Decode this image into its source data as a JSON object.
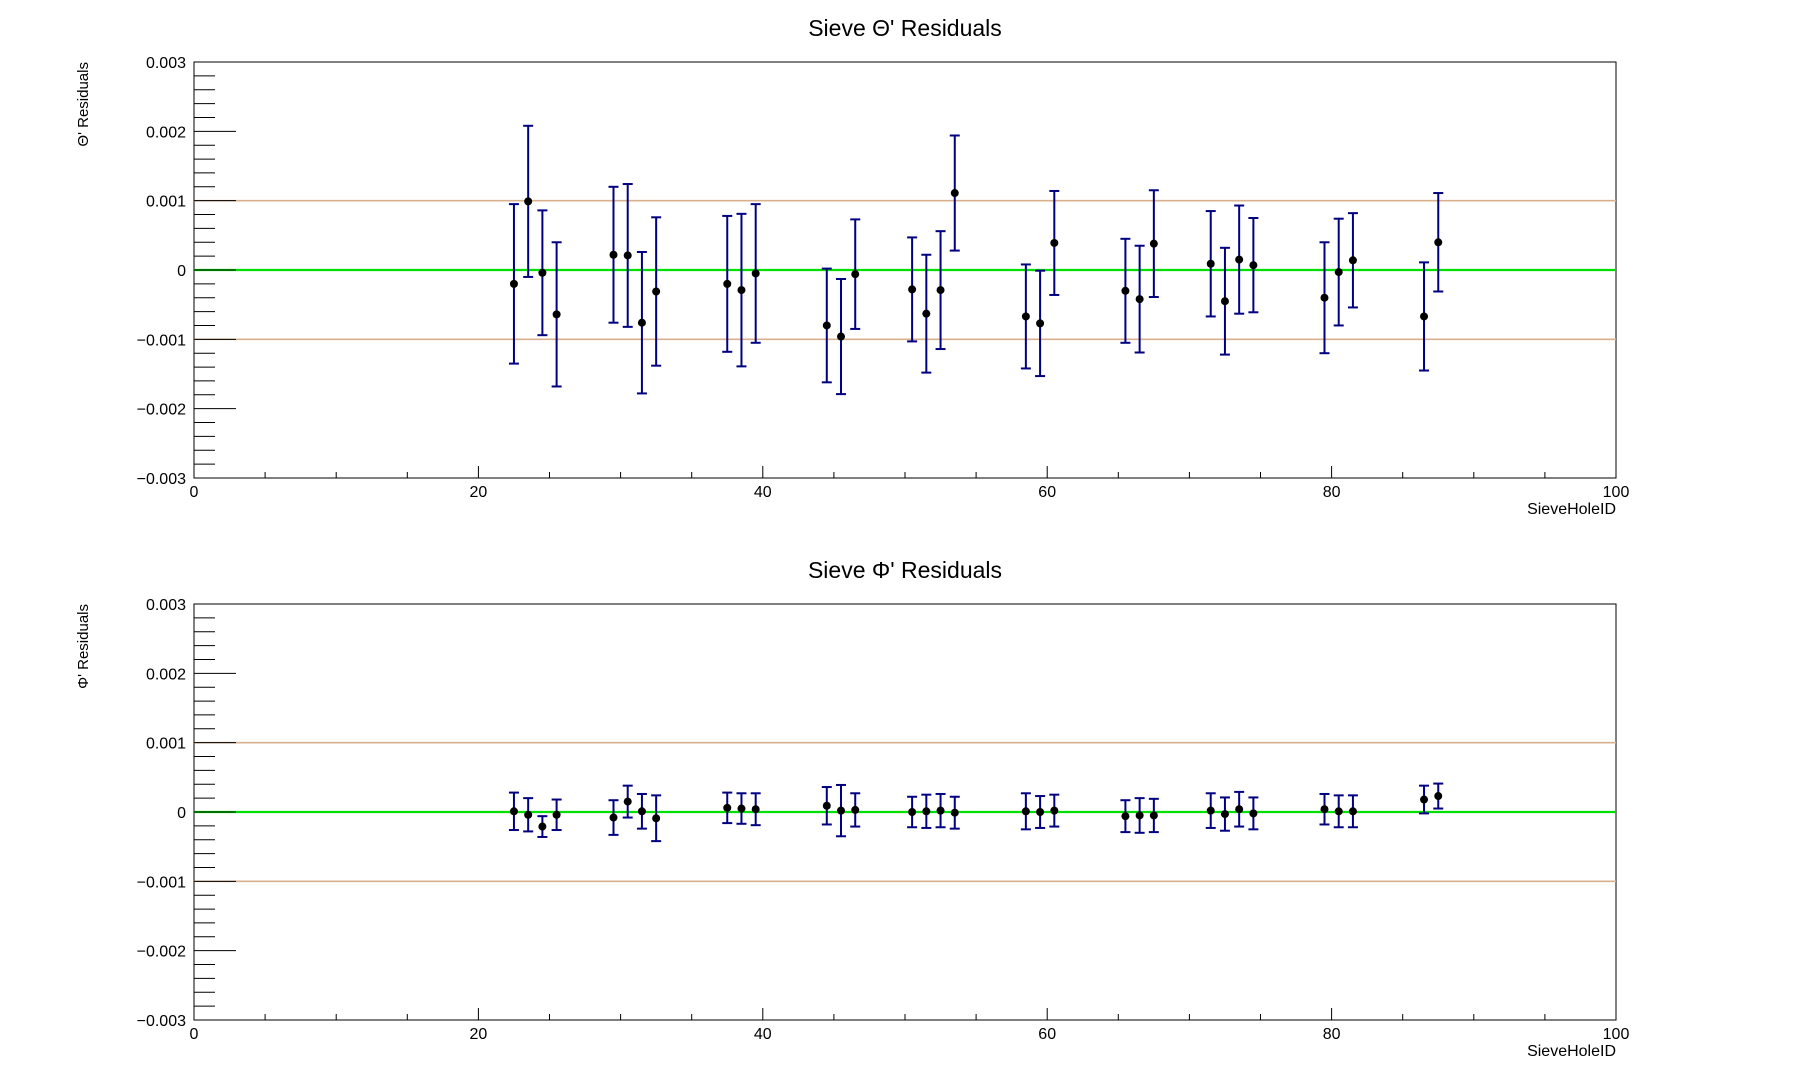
{
  "colors": {
    "frame": "#000000",
    "zero_line": "#00e000",
    "limit_line": "#d9b08c",
    "error_bar": "#000080",
    "marker": "#000000"
  },
  "chart_data": [
    {
      "type": "scatter",
      "title": "Sieve Θ' Residuals",
      "xlabel": "SieveHoleID",
      "ylabel": "Θ' Residuals",
      "xlim": [
        0,
        100
      ],
      "ylim": [
        -0.003,
        0.003
      ],
      "x_ticks": [
        "0",
        "20",
        "40",
        "60",
        "80",
        "100"
      ],
      "y_ticks": [
        "−0.003",
        "−0.002",
        "−0.001",
        "0",
        "0.001",
        "0.002",
        "0.003"
      ],
      "grid": false,
      "reference_lines": [
        0.001,
        0,
        -0.001
      ],
      "series": [
        {
          "x": [
            22.5,
            23.5,
            24.5,
            25.5,
            29.5,
            30.5,
            31.5,
            32.5,
            37.5,
            38.5,
            39.5,
            44.5,
            45.5,
            46.5,
            50.5,
            51.5,
            52.5,
            53.5,
            58.5,
            59.5,
            60.5,
            65.5,
            66.5,
            67.5,
            71.5,
            72.5,
            73.5,
            74.5,
            79.5,
            80.5,
            81.5,
            86.5,
            87.5
          ],
          "y": [
            -0.0002,
            0.00099,
            -4e-05,
            -0.00064,
            0.00022,
            0.00021,
            -0.00076,
            -0.00031,
            -0.0002,
            -0.00029,
            -5e-05,
            -0.0008,
            -0.00096,
            -6e-05,
            -0.00028,
            -0.00063,
            -0.00029,
            0.00111,
            -0.00067,
            -0.00077,
            0.00039,
            -0.0003,
            -0.00042,
            0.00038,
            9e-05,
            -0.00045,
            0.00015,
            7e-05,
            -0.0004,
            -3e-05,
            0.00014,
            -0.00067,
            0.0004
          ],
          "err": [
            0.00115,
            0.00109,
            0.0009,
            0.00104,
            0.00098,
            0.00103,
            0.00102,
            0.00107,
            0.00098,
            0.0011,
            0.001,
            0.00082,
            0.00083,
            0.00079,
            0.00075,
            0.00085,
            0.00085,
            0.00083,
            0.00075,
            0.00076,
            0.00075,
            0.00075,
            0.00077,
            0.00077,
            0.00076,
            0.00077,
            0.00078,
            0.00068,
            0.0008,
            0.00077,
            0.00068,
            0.00078,
            0.00071
          ]
        }
      ]
    },
    {
      "type": "scatter",
      "title": "Sieve Φ' Residuals",
      "xlabel": "SieveHoleID",
      "ylabel": "Φ' Residuals",
      "xlim": [
        0,
        100
      ],
      "ylim": [
        -0.003,
        0.003
      ],
      "x_ticks": [
        "0",
        "20",
        "40",
        "60",
        "80",
        "100"
      ],
      "y_ticks": [
        "−0.003",
        "−0.002",
        "−0.001",
        "0",
        "0.001",
        "0.002",
        "0.003"
      ],
      "grid": false,
      "reference_lines": [
        0.001,
        0,
        -0.001
      ],
      "series": [
        {
          "x": [
            22.5,
            23.5,
            24.5,
            25.5,
            29.5,
            30.5,
            31.5,
            32.5,
            37.5,
            38.5,
            39.5,
            44.5,
            45.5,
            46.5,
            50.5,
            51.5,
            52.5,
            53.5,
            58.5,
            59.5,
            60.5,
            65.5,
            66.5,
            67.5,
            71.5,
            72.5,
            73.5,
            74.5,
            79.5,
            80.5,
            81.5,
            86.5,
            87.5
          ],
          "y": [
            1e-05,
            -4e-05,
            -0.00021,
            -4e-05,
            -8e-05,
            0.00015,
            1e-05,
            -9e-05,
            6e-05,
            5e-05,
            4e-05,
            9e-05,
            2e-05,
            3e-05,
            0.0,
            1e-05,
            2e-05,
            -1e-05,
            1e-05,
            0.0,
            2e-05,
            -6e-05,
            -5e-05,
            -5e-05,
            2e-05,
            -3e-05,
            4e-05,
            -2e-05,
            4e-05,
            1e-05,
            1e-05,
            0.00018,
            0.00023
          ],
          "err": [
            0.00027,
            0.00024,
            0.00015,
            0.00022,
            0.00025,
            0.00023,
            0.00025,
            0.00033,
            0.00022,
            0.00022,
            0.00023,
            0.00027,
            0.00037,
            0.00024,
            0.00022,
            0.00024,
            0.00024,
            0.00023,
            0.00026,
            0.00023,
            0.00023,
            0.00023,
            0.00025,
            0.00024,
            0.00025,
            0.00024,
            0.00025,
            0.00023,
            0.00022,
            0.00023,
            0.00023,
            0.0002,
            0.00018
          ]
        }
      ]
    }
  ]
}
